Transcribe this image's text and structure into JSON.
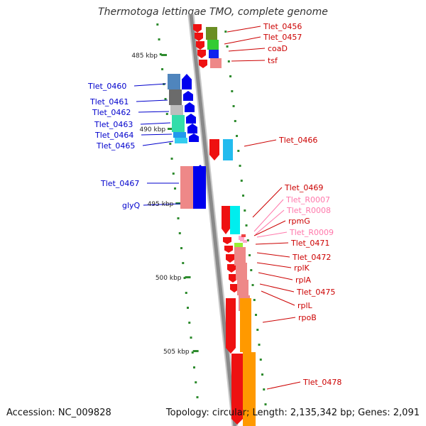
{
  "title": "Thermotoga lettingae TMO, complete genome",
  "footer": {
    "accession": "Accession: NC_009828",
    "topology": "Topology: circular; Length: 2,135,342 bp; Genes: 2,091"
  },
  "colors": {
    "backbone": "#8a8a8a",
    "tick": "#2e8b2e",
    "left_label": "#0000cc",
    "right_label": "#cc0000",
    "rna_label": "#ff77aa"
  },
  "kbp_labels": [
    "485 kbp",
    "490 kbp",
    "495 kbp",
    "500 kbp",
    "505 kbp"
  ],
  "left_genes": [
    {
      "label": "Tlet_0460",
      "color": "#4f85bd"
    },
    {
      "label": "Tlet_0461",
      "color": "#6b6b6b"
    },
    {
      "label": "Tlet_0462",
      "color": "#bdbdbd"
    },
    {
      "label": "Tlet_0463",
      "color": "#33ddaa"
    },
    {
      "label": "Tlet_0464",
      "color": "#2299ee"
    },
    {
      "label": "Tlet_0465",
      "color": "#33ccee"
    },
    {
      "label": "Tlet_0467",
      "color": "#ee8888"
    },
    {
      "label": "glyQ",
      "color": "#0000ee"
    }
  ],
  "right_genes": [
    {
      "label": "Tlet_0456",
      "color": "#6b8e23"
    },
    {
      "label": "Tlet_0457",
      "color": "#33cc33"
    },
    {
      "label": "coaD",
      "color": "#1122ee"
    },
    {
      "label": "tsf",
      "color": "#ee8888"
    },
    {
      "label": "Tlet_0466",
      "color": "#22bbee"
    },
    {
      "label": "Tlet_0469",
      "color": "#00eeee"
    },
    {
      "label": "Tlet_R0007",
      "color": "#ffaacc"
    },
    {
      "label": "Tlet_R0008",
      "color": "#ffaacc"
    },
    {
      "label": "rpmG",
      "color": "#ee4444"
    },
    {
      "label": "Tlet_R0009",
      "color": "#ffaacc"
    },
    {
      "label": "Tlet_0471",
      "color": "#99ee33"
    },
    {
      "label": "Tlet_0472",
      "color": "#ee8888"
    },
    {
      "label": "rplK",
      "color": "#ee8888"
    },
    {
      "label": "rplA",
      "color": "#ee8888"
    },
    {
      "label": "Tlet_0475",
      "color": "#ee8888"
    },
    {
      "label": "rplL",
      "color": "#ff9900"
    },
    {
      "label": "rpoB",
      "color": "#ff9900"
    },
    {
      "label": "Tlet_0478",
      "color": "#ff9900"
    }
  ]
}
